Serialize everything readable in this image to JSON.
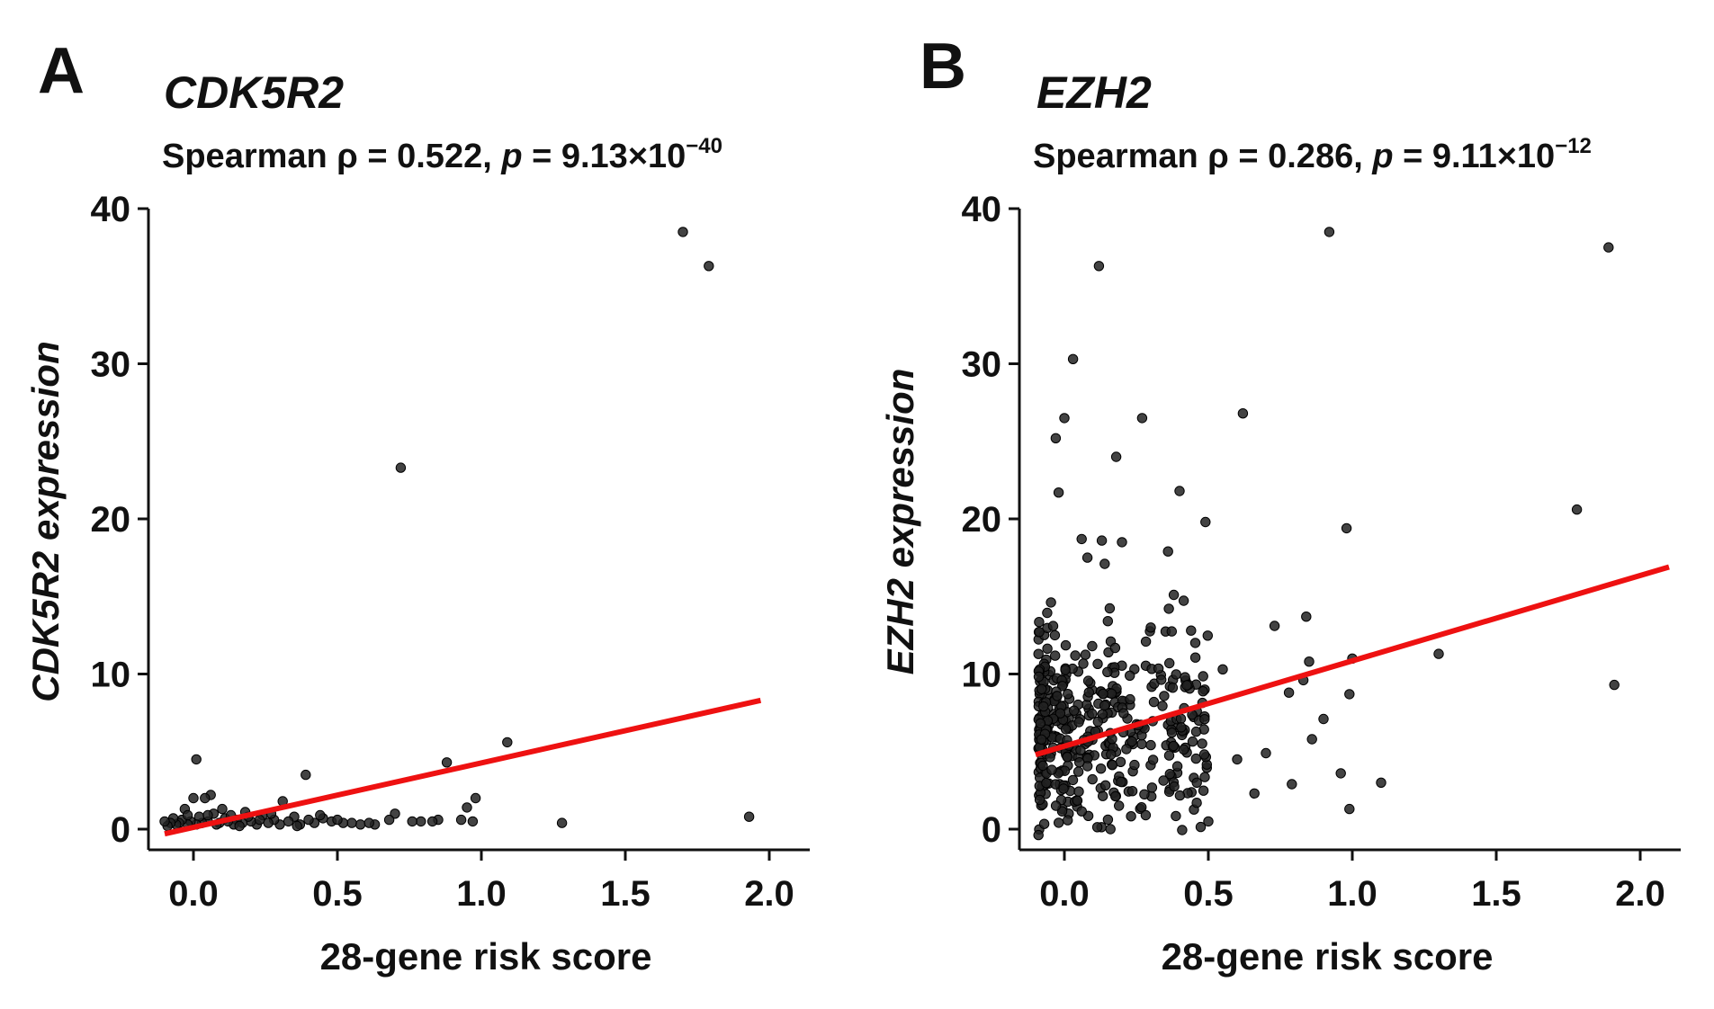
{
  "chart_data": [
    {
      "type": "scatter",
      "panel_label": "A",
      "title": "CDK5R2",
      "subtitle": {
        "prefix": "Spearman ρ = 0.522, ",
        "p_symbol": "p",
        "p_value": " = 9.13×10",
        "exponent": "−40"
      },
      "xlabel": "28-gene risk score",
      "ylabel_gene": "CDK5R2",
      "ylabel_rest": " expression",
      "xlim": [
        -0.12,
        2.12
      ],
      "ylim": [
        -1.2,
        40
      ],
      "xticks": [
        0.0,
        0.5,
        1.0,
        1.5,
        2.0
      ],
      "xtick_labels": [
        "0.0",
        "0.5",
        "1.0",
        "1.5",
        "2.0"
      ],
      "yticks": [
        0,
        10,
        20,
        30,
        40
      ],
      "ytick_labels": [
        "0",
        "10",
        "20",
        "30",
        "40"
      ],
      "trend_line": {
        "x": [
          -0.1,
          1.97
        ],
        "y": [
          -0.3,
          8.3
        ],
        "color": "#ee1111"
      },
      "point_color": "#222222",
      "points": [
        [
          1.7,
          38.5
        ],
        [
          1.79,
          36.3
        ],
        [
          0.72,
          23.3
        ],
        [
          1.93,
          0.8
        ],
        [
          1.28,
          0.4
        ],
        [
          1.09,
          5.6
        ],
        [
          0.88,
          4.3
        ],
        [
          0.39,
          3.5
        ],
        [
          0.01,
          4.5
        ],
        [
          0.98,
          2.0
        ],
        [
          0.95,
          1.4
        ],
        [
          0.93,
          0.6
        ],
        [
          0.97,
          0.5
        ],
        [
          0.85,
          0.6
        ],
        [
          0.83,
          0.5
        ],
        [
          0.79,
          0.5
        ],
        [
          0.76,
          0.5
        ],
        [
          0.7,
          1.0
        ],
        [
          0.68,
          0.6
        ],
        [
          0.63,
          0.3
        ],
        [
          0.58,
          0.3
        ],
        [
          0.55,
          0.4
        ],
        [
          0.52,
          0.4
        ],
        [
          0.48,
          0.5
        ],
        [
          0.45,
          0.7
        ],
        [
          0.42,
          0.4
        ],
        [
          0.4,
          0.6
        ],
        [
          0.37,
          0.3
        ],
        [
          0.35,
          0.8
        ],
        [
          0.33,
          0.5
        ],
        [
          0.31,
          1.8
        ],
        [
          0.3,
          0.3
        ],
        [
          0.28,
          0.6
        ],
        [
          0.26,
          0.4
        ],
        [
          0.24,
          0.9
        ],
        [
          0.22,
          0.3
        ],
        [
          0.2,
          0.5
        ],
        [
          0.19,
          0.8
        ],
        [
          0.17,
          0.4
        ],
        [
          0.15,
          0.6
        ],
        [
          0.14,
          0.3
        ],
        [
          0.12,
          0.5
        ],
        [
          0.11,
          0.7
        ],
        [
          0.09,
          0.4
        ],
        [
          0.08,
          0.3
        ],
        [
          0.07,
          1.0
        ],
        [
          0.06,
          2.2
        ],
        [
          0.05,
          0.5
        ],
        [
          0.04,
          2.0
        ],
        [
          0.03,
          0.4
        ],
        [
          0.02,
          0.8
        ],
        [
          0.01,
          0.3
        ],
        [
          0.0,
          2.0
        ],
        [
          -0.01,
          0.5
        ],
        [
          -0.02,
          0.3
        ],
        [
          -0.03,
          1.3
        ],
        [
          -0.04,
          0.6
        ],
        [
          -0.05,
          0.4
        ],
        [
          -0.06,
          0.3
        ],
        [
          -0.07,
          0.7
        ],
        [
          -0.08,
          0.4
        ],
        [
          -0.09,
          0.2
        ],
        [
          -0.1,
          0.5
        ],
        [
          0.27,
          1.0
        ],
        [
          0.44,
          0.9
        ],
        [
          0.5,
          0.6
        ],
        [
          0.61,
          0.4
        ],
        [
          0.18,
          1.1
        ],
        [
          0.13,
          0.9
        ],
        [
          0.1,
          1.3
        ],
        [
          0.36,
          0.2
        ],
        [
          0.23,
          0.6
        ],
        [
          0.16,
          0.2
        ],
        [
          0.05,
          0.9
        ],
        [
          -0.02,
          0.9
        ]
      ]
    },
    {
      "type": "scatter",
      "panel_label": "B",
      "title": "EZH2",
      "subtitle": {
        "prefix": "Spearman ρ = 0.286, ",
        "p_symbol": "p",
        "p_value": " = 9.11×10",
        "exponent": "−12"
      },
      "xlabel": "28-gene risk score",
      "ylabel_gene": "EZH2",
      "ylabel_rest": " expression",
      "xlim": [
        -0.12,
        2.12
      ],
      "ylim": [
        -1.2,
        40
      ],
      "xticks": [
        0.0,
        0.5,
        1.0,
        1.5,
        2.0
      ],
      "xtick_labels": [
        "0.0",
        "0.5",
        "1.0",
        "1.5",
        "2.0"
      ],
      "yticks": [
        0,
        10,
        20,
        30,
        40
      ],
      "ytick_labels": [
        "0",
        "10",
        "20",
        "30",
        "40"
      ],
      "trend_line": {
        "x": [
          -0.1,
          2.1
        ],
        "y": [
          4.8,
          16.9
        ],
        "color": "#ee1111"
      },
      "point_color": "#222222",
      "points": [
        [
          0.92,
          38.5
        ],
        [
          1.89,
          37.5
        ],
        [
          0.12,
          36.3
        ],
        [
          0.03,
          30.3
        ],
        [
          -0.03,
          25.2
        ],
        [
          -0.02,
          21.7
        ],
        [
          0.0,
          26.5
        ],
        [
          0.27,
          26.5
        ],
        [
          0.62,
          26.8
        ],
        [
          0.18,
          24.0
        ],
        [
          0.4,
          21.8
        ],
        [
          0.49,
          19.8
        ],
        [
          0.98,
          19.4
        ],
        [
          1.78,
          20.6
        ],
        [
          1.91,
          9.3
        ],
        [
          1.3,
          11.3
        ],
        [
          1.1,
          3.0
        ],
        [
          0.99,
          1.3
        ],
        [
          0.99,
          8.7
        ],
        [
          1.0,
          11.0
        ],
        [
          0.96,
          3.6
        ],
        [
          0.84,
          13.7
        ],
        [
          0.85,
          10.8
        ],
        [
          0.86,
          5.8
        ],
        [
          0.73,
          13.1
        ],
        [
          0.79,
          2.9
        ],
        [
          0.66,
          2.3
        ],
        [
          0.5,
          0.5
        ],
        [
          0.55,
          10.3
        ],
        [
          0.38,
          15.1
        ],
        [
          0.36,
          17.9
        ],
        [
          0.06,
          18.7
        ],
        [
          0.13,
          18.6
        ],
        [
          0.2,
          18.5
        ],
        [
          0.08,
          17.5
        ],
        [
          0.14,
          17.1
        ],
        [
          0.3,
          13.0
        ],
        [
          0.44,
          12.8
        ],
        [
          0.16,
          0.0
        ],
        [
          0.46,
          3.0
        ],
        [
          0.6,
          4.5
        ],
        [
          0.7,
          4.9
        ],
        [
          0.78,
          8.8
        ],
        [
          0.83,
          9.6
        ],
        [
          0.9,
          7.1
        ]
      ],
      "cluster": {
        "x_range": [
          -0.09,
          0.5
        ],
        "y_center": 6.5,
        "count": 420
      }
    }
  ]
}
